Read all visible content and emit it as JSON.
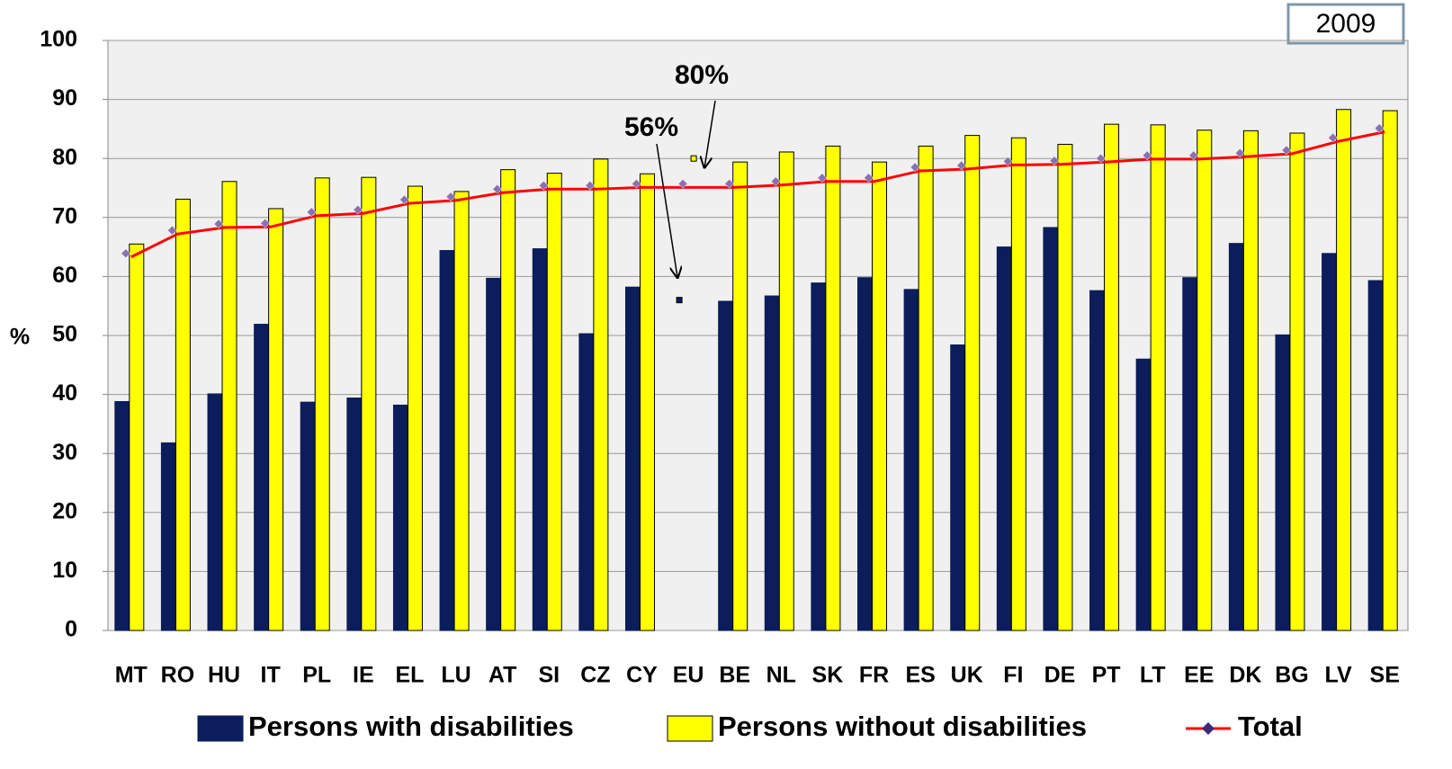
{
  "chart_data": {
    "type": "bar",
    "y_label": "%",
    "badge": "2009",
    "categories": [
      "MT",
      "RO",
      "HU",
      "IT",
      "PL",
      "IE",
      "EL",
      "LU",
      "AT",
      "SI",
      "CZ",
      "CY",
      "EU",
      "BE",
      "NL",
      "SK",
      "FR",
      "ES",
      "UK",
      "FI",
      "DE",
      "PT",
      "LT",
      "EE",
      "DK",
      "BG",
      "LV",
      "SE"
    ],
    "series": [
      {
        "name": "Persons with disabilities",
        "color": "#0b1d5a",
        "kind": "bar",
        "values": [
          38.8,
          31.8,
          40.1,
          51.9,
          38.7,
          39.4,
          38.2,
          64.4,
          59.7,
          64.7,
          50.3,
          58.2,
          null,
          55.8,
          56.7,
          58.9,
          59.8,
          57.8,
          48.4,
          65.0,
          68.3,
          57.6,
          46.0,
          59.8,
          65.6,
          50.1,
          63.9,
          59.3
        ]
      },
      {
        "name": "Persons without disabilities",
        "color": "#ffff00",
        "kind": "bar",
        "values": [
          65.5,
          73.1,
          76.1,
          71.5,
          76.7,
          76.8,
          75.3,
          74.4,
          78.1,
          77.5,
          79.9,
          77.4,
          null,
          79.4,
          81.1,
          82.1,
          79.4,
          82.1,
          83.9,
          83.5,
          82.4,
          85.8,
          85.7,
          84.8,
          84.7,
          84.3,
          88.3,
          88.1
        ]
      },
      {
        "name": "Total",
        "color": "#ff0000",
        "kind": "line",
        "values": [
          63.3,
          67.2,
          68.3,
          68.4,
          70.3,
          70.7,
          72.4,
          72.9,
          74.2,
          74.8,
          74.8,
          75.1,
          75.1,
          75.1,
          75.5,
          76.1,
          76.1,
          77.9,
          78.2,
          78.9,
          79.0,
          79.4,
          79.9,
          79.9,
          80.3,
          80.8,
          82.9,
          84.5
        ]
      }
    ],
    "annotations": [
      {
        "text": "56%",
        "value": 56,
        "series": 0
      },
      {
        "text": "80%",
        "value": 80,
        "series": 1
      }
    ],
    "ylim": [
      0,
      100
    ],
    "yticks": [
      0,
      10,
      20,
      30,
      40,
      50,
      60,
      70,
      80,
      90,
      100
    ],
    "grid": true
  }
}
